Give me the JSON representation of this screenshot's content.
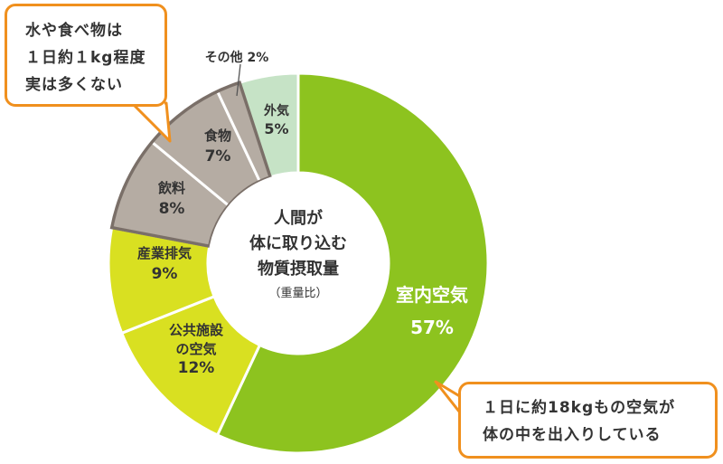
{
  "chart_data": {
    "type": "pie",
    "donut": true,
    "center_label": [
      "人間が",
      "体に取り込む",
      "物質摂取量"
    ],
    "center_sublabel": "（重量比）",
    "unit": "%",
    "slices": [
      {
        "label": "室内空気",
        "value": 57,
        "color": "#8dc31f"
      },
      {
        "label": "公共施設の空気",
        "value": 12,
        "color": "#d9e021"
      },
      {
        "label": "産業排気",
        "value": 9,
        "color": "#d9e021"
      },
      {
        "label": "飲料",
        "value": 8,
        "color": "#b5aca3"
      },
      {
        "label": "食物",
        "value": 7,
        "color": "#b5aca3"
      },
      {
        "label": "その他",
        "value": 2,
        "color": "#b5aca3"
      },
      {
        "label": "外気",
        "value": 5,
        "color": "#c6e3c6"
      }
    ]
  },
  "callouts": {
    "left": [
      "水や食べ物は",
      "１日約１kg程度",
      "実は多くない"
    ],
    "right": [
      "１日に約18kgもの空気が",
      "体の中を出入りしている"
    ]
  },
  "colors": {
    "callout_border": "#f0901e",
    "slice_border": "#ffffff",
    "highlight_border": "#7a6f68",
    "text_dark": "#333333",
    "text_light": "#ffffff"
  }
}
